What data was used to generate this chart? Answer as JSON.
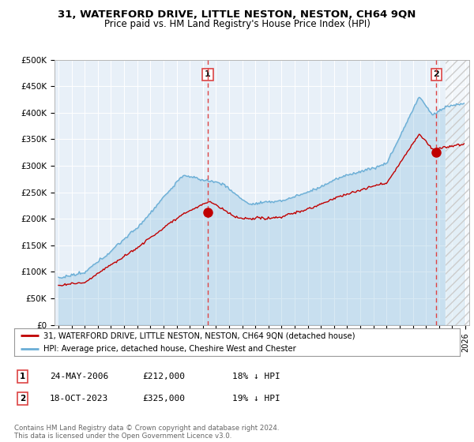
{
  "title": "31, WATERFORD DRIVE, LITTLE NESTON, NESTON, CH64 9QN",
  "subtitle": "Price paid vs. HM Land Registry's House Price Index (HPI)",
  "ylabel_ticks": [
    "£0",
    "£50K",
    "£100K",
    "£150K",
    "£200K",
    "£250K",
    "£300K",
    "£350K",
    "£400K",
    "£450K",
    "£500K"
  ],
  "ytick_values": [
    0,
    50000,
    100000,
    150000,
    200000,
    250000,
    300000,
    350000,
    400000,
    450000,
    500000
  ],
  "xlim_start": 1994.7,
  "xlim_end": 2026.3,
  "ylim": [
    0,
    500000
  ],
  "hpi_color": "#6aaed6",
  "hpi_fill_color": "#ddeeff",
  "price_color": "#c00000",
  "vline_color": "#dd4444",
  "marker1_x": 2006.38,
  "marker1_y": 212000,
  "marker2_x": 2023.79,
  "marker2_y": 325000,
  "legend_label1": "31, WATERFORD DRIVE, LITTLE NESTON, NESTON, CH64 9QN (detached house)",
  "legend_label2": "HPI: Average price, detached house, Cheshire West and Chester",
  "annotation1_label": "1",
  "annotation2_label": "2",
  "table_row1": [
    "1",
    "24-MAY-2006",
    "£212,000",
    "18% ↓ HPI"
  ],
  "table_row2": [
    "2",
    "18-OCT-2023",
    "£325,000",
    "19% ↓ HPI"
  ],
  "footer": "Contains HM Land Registry data © Crown copyright and database right 2024.\nThis data is licensed under the Open Government Licence v3.0.",
  "background_color": "#ffffff",
  "plot_bg_color": "#e8f0f8",
  "grid_color": "#ffffff"
}
